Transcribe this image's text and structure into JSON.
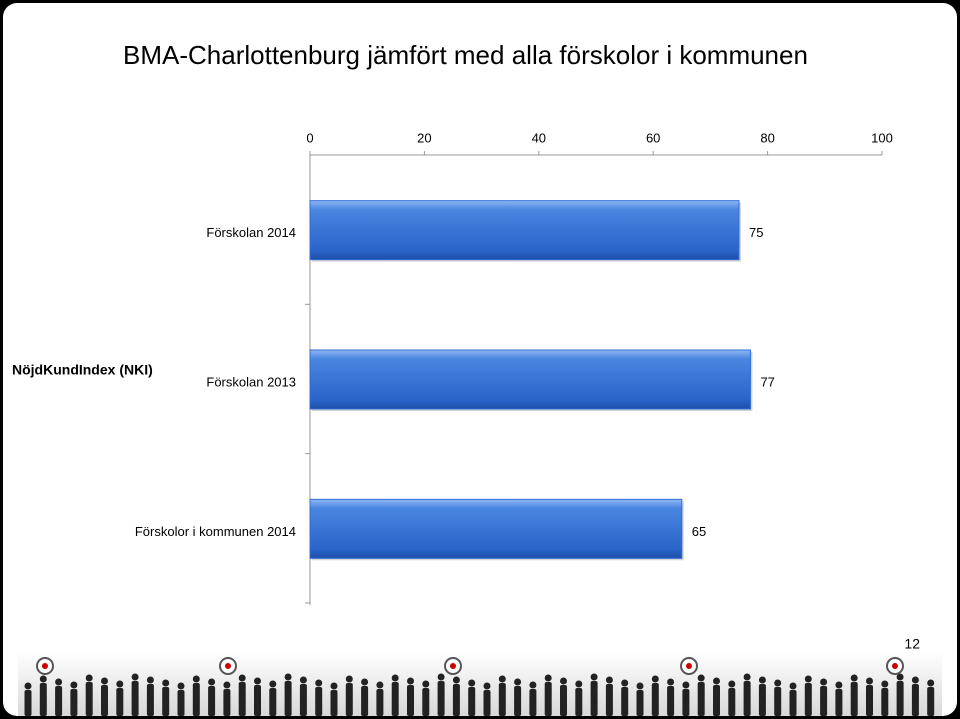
{
  "chart_data": {
    "type": "hbar",
    "title": "BMA-Charlottenburg jämfört med alla förskolor i kommunen",
    "group_label": "NöjdKundIndex (NKI)",
    "categories": [
      "Förskolan 2014",
      "Förskolan 2013",
      "Förskolor i kommunen 2014"
    ],
    "values": [
      75,
      77,
      65
    ],
    "color": "#2f6fd6",
    "xlim": [
      0,
      100
    ],
    "xticks": [
      0,
      20,
      40,
      60,
      80,
      100
    ]
  },
  "slide": {
    "page_number": "12"
  }
}
